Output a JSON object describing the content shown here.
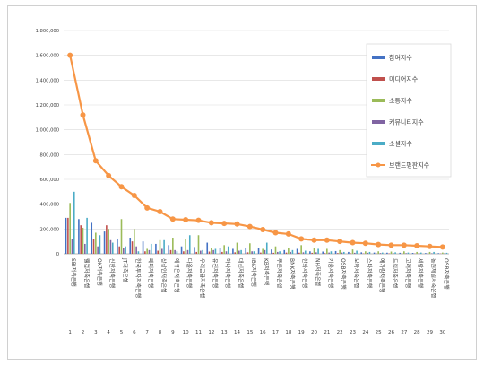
{
  "chart_data": {
    "type": "bar",
    "title": "",
    "xlabel": "",
    "ylabel": "",
    "ylim": [
      0,
      1800000
    ],
    "yticks": [
      "0",
      "200,000",
      "400,000",
      "600,000",
      "800,000",
      "1,000,000",
      "1,200,000",
      "1,400,000",
      "1,600,000",
      "1,800,000"
    ],
    "grid": true,
    "legend_position": "right",
    "categories": [
      "1",
      "2",
      "3",
      "4",
      "5",
      "6",
      "7",
      "8",
      "9",
      "10",
      "11",
      "12",
      "13",
      "14",
      "15",
      "16",
      "17",
      "18",
      "19",
      "20",
      "21",
      "22",
      "23",
      "24",
      "25",
      "26",
      "27",
      "28",
      "29",
      "30"
    ],
    "bank_names": [
      "SBI저축은행",
      "웰컴저축은행",
      "OK저축은행",
      "신한저축은행",
      "JT저축은행",
      "한국투자저축은행",
      "페퍼저축은행",
      "상상인저축은행",
      "애큐온저축은행",
      "다올저축은행",
      "우리금융저축은행",
      "유진저축은행",
      "하나저축은행",
      "대신저축은행",
      "IBK저축은행",
      "KB저축은행",
      "푸른저축은행",
      "BNK저축은행",
      "한화저축은행",
      "NH저축은행",
      "키움저축은행",
      "OSB저축은행",
      "모아저축은행",
      "스타저축은행",
      "예가람저축은행",
      "드림저축은행",
      "고려저축은행",
      "세람저축은행",
      "동원제일저축은행",
      "OSB저축은행"
    ],
    "series": [
      {
        "name": "참여지수",
        "type": "bar",
        "color": "#4472c4",
        "values": [
          290000,
          280000,
          250000,
          180000,
          120000,
          130000,
          100000,
          80000,
          70000,
          60000,
          55000,
          90000,
          50000,
          40000,
          45000,
          50000,
          35000,
          30000,
          40000,
          20000,
          18000,
          22000,
          15000,
          12000,
          10000,
          9000,
          8000,
          7000,
          6000,
          5000
        ]
      },
      {
        "name": "미디어지수",
        "type": "bar",
        "color": "#c0504d",
        "values": [
          290000,
          230000,
          120000,
          230000,
          60000,
          100000,
          20000,
          25000,
          30000,
          20000,
          15000,
          18000,
          15000,
          12000,
          12000,
          10000,
          8000,
          10000,
          9000,
          8000,
          5000,
          6000,
          4000,
          3000,
          3000,
          3000,
          2000,
          2000,
          2000,
          2000
        ]
      },
      {
        "name": "소통지수",
        "type": "bar",
        "color": "#9bbb59",
        "values": [
          410000,
          210000,
          170000,
          200000,
          280000,
          200000,
          40000,
          110000,
          130000,
          120000,
          150000,
          50000,
          70000,
          90000,
          85000,
          40000,
          60000,
          50000,
          70000,
          50000,
          40000,
          30000,
          35000,
          20000,
          20000,
          18000,
          20000,
          15000,
          15000,
          10000
        ]
      },
      {
        "name": "커뮤니티지수",
        "type": "bar",
        "color": "#8064a2",
        "values": [
          120000,
          80000,
          60000,
          110000,
          50000,
          60000,
          30000,
          40000,
          30000,
          30000,
          25000,
          30000,
          20000,
          25000,
          20000,
          30000,
          15000,
          15000,
          12000,
          12000,
          10000,
          10000,
          8000,
          8000,
          6000,
          5000,
          5000,
          5000,
          4000,
          4000
        ]
      },
      {
        "name": "소셜지수",
        "type": "bar",
        "color": "#4bacc6",
        "values": [
          500000,
          290000,
          150000,
          90000,
          60000,
          20000,
          80000,
          110000,
          20000,
          150000,
          30000,
          40000,
          60000,
          30000,
          20000,
          90000,
          20000,
          30000,
          25000,
          40000,
          20000,
          15000,
          25000,
          15000,
          10000,
          12000,
          10000,
          10000,
          15000,
          8000
        ]
      },
      {
        "name": "브랜드평판지수",
        "type": "line",
        "color": "#f79646",
        "values": [
          1600000,
          1120000,
          750000,
          630000,
          540000,
          470000,
          370000,
          340000,
          280000,
          275000,
          270000,
          250000,
          245000,
          240000,
          220000,
          195000,
          170000,
          160000,
          120000,
          110000,
          110000,
          100000,
          90000,
          85000,
          75000,
          70000,
          70000,
          65000,
          60000,
          55000
        ]
      }
    ]
  }
}
